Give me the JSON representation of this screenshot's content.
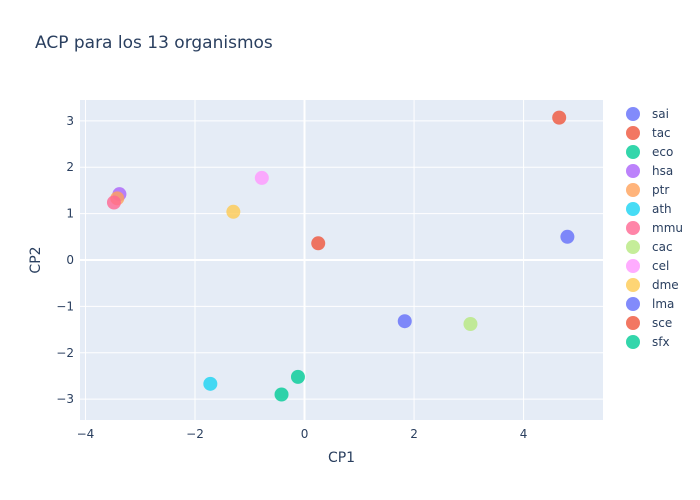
{
  "chart_data": {
    "type": "scatter",
    "title": "ACP para los 13 organismos",
    "xlabel": "CP1",
    "ylabel": "CP2",
    "xlim": [
      -4.1,
      5.45
    ],
    "ylim": [
      -3.45,
      3.45
    ],
    "xticks": [
      -4,
      -2,
      0,
      2,
      4
    ],
    "yticks": [
      -3,
      -2,
      -1,
      0,
      1,
      2,
      3
    ],
    "grid": true,
    "legend_position": "right",
    "series": [
      {
        "name": "sai",
        "color": "#636efa",
        "x": 4.8,
        "y": 0.5
      },
      {
        "name": "tac",
        "color": "#ef553b",
        "x": 4.65,
        "y": 3.07
      },
      {
        "name": "eco",
        "color": "#00cc96",
        "x": -0.42,
        "y": -2.9
      },
      {
        "name": "hsa",
        "color": "#ab63fa",
        "x": -3.38,
        "y": 1.42
      },
      {
        "name": "ptr",
        "color": "#ffa15a",
        "x": -3.42,
        "y": 1.33
      },
      {
        "name": "ath",
        "color": "#19d3f3",
        "x": -1.72,
        "y": -2.67
      },
      {
        "name": "mmu",
        "color": "#ff6692",
        "x": -3.48,
        "y": 1.24
      },
      {
        "name": "cac",
        "color": "#b6e880",
        "x": 3.03,
        "y": -1.38
      },
      {
        "name": "cel",
        "color": "#ff97ff",
        "x": -0.78,
        "y": 1.77
      },
      {
        "name": "dme",
        "color": "#fecb52",
        "x": -1.3,
        "y": 1.04
      },
      {
        "name": "lma",
        "color": "#636efa",
        "x": 1.83,
        "y": -1.32
      },
      {
        "name": "sce",
        "color": "#ef553b",
        "x": 0.25,
        "y": 0.36
      },
      {
        "name": "sfx",
        "color": "#00cc96",
        "x": -0.12,
        "y": -2.52
      }
    ]
  }
}
